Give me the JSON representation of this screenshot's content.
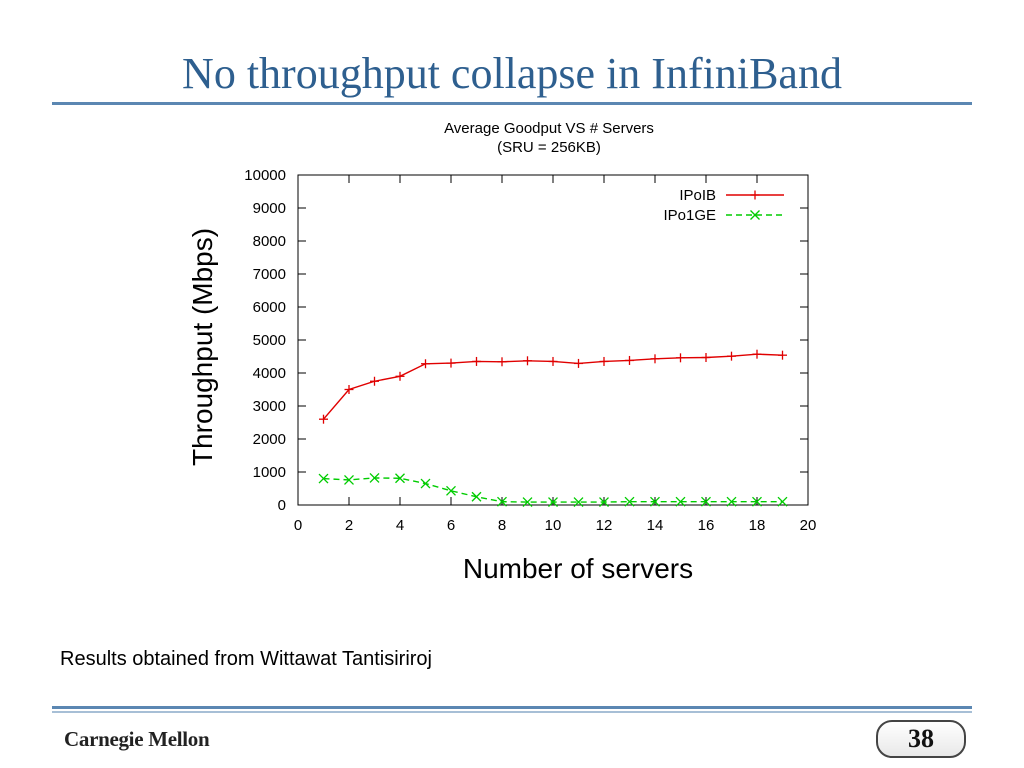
{
  "slide": {
    "title": "No throughput collapse in InfiniBand",
    "caption": "Results obtained from Wittawat Tantisiriroj",
    "brand": "Carnegie Mellon",
    "page_number": "38"
  },
  "chart_data": {
    "type": "line",
    "title": "Average Goodput VS # Servers",
    "subtitle": "(SRU = 256KB)",
    "xlabel": "Number of servers",
    "ylabel": "Throughput  (Mbps)",
    "xlim": [
      0,
      20
    ],
    "ylim": [
      0,
      10000
    ],
    "xticks": [
      0,
      2,
      4,
      6,
      8,
      10,
      12,
      14,
      16,
      18,
      20
    ],
    "yticks": [
      0,
      1000,
      2000,
      3000,
      4000,
      5000,
      6000,
      7000,
      8000,
      9000,
      10000
    ],
    "grid": false,
    "legend_position": "top-right",
    "x": [
      1,
      2,
      3,
      4,
      5,
      6,
      7,
      8,
      9,
      10,
      11,
      12,
      13,
      14,
      15,
      16,
      17,
      18,
      19
    ],
    "series": [
      {
        "name": "IPoIB",
        "color": "#e00000",
        "marker": "+",
        "dash": "solid",
        "values": [
          2600,
          3500,
          3750,
          3900,
          4280,
          4300,
          4350,
          4340,
          4370,
          4350,
          4290,
          4350,
          4380,
          4430,
          4460,
          4470,
          4510,
          4570,
          4540
        ]
      },
      {
        "name": "IPo1GE",
        "color": "#00cc00",
        "marker": "x",
        "dash": "dashed",
        "values": [
          800,
          760,
          820,
          810,
          650,
          430,
          250,
          100,
          90,
          90,
          90,
          90,
          100,
          100,
          100,
          100,
          100,
          100,
          100
        ]
      }
    ]
  }
}
